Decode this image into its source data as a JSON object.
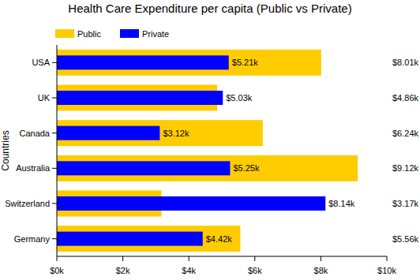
{
  "chart_data": {
    "type": "bar",
    "orientation": "horizontal",
    "title": "Health Care Expenditure per capita (Public vs Private)",
    "y_label": "Countries",
    "categories": [
      "USA",
      "UK",
      "Canada",
      "Australia",
      "Switzerland",
      "Germany"
    ],
    "series": [
      {
        "name": "Public",
        "color": "#FFCC00",
        "values": [
          8.01,
          4.86,
          6.24,
          9.12,
          3.17,
          5.56
        ],
        "value_labels": [
          "$8.01k",
          "$4.86k",
          "$6.24k",
          "$9.12k",
          "$3.17k",
          "$5.56k"
        ]
      },
      {
        "name": "Private",
        "color": "#0000FF",
        "values": [
          5.21,
          5.03,
          3.12,
          5.25,
          8.14,
          4.42
        ],
        "value_labels": [
          "$5.21k",
          "$5.03k",
          "$3.12k",
          "$5.25k",
          "$8.14k",
          "$4.42k"
        ]
      }
    ],
    "xlim": [
      0,
      10
    ],
    "xticks": [
      {
        "value": 0,
        "label": "$0k"
      },
      {
        "value": 2,
        "label": "$2k"
      },
      {
        "value": 4,
        "label": "$4k"
      },
      {
        "value": 6,
        "label": "$6k"
      },
      {
        "value": 8,
        "label": "$8k"
      },
      {
        "value": 10,
        "label": "$10k"
      }
    ],
    "data_labels": true,
    "legend": "top-left",
    "grid": false
  }
}
